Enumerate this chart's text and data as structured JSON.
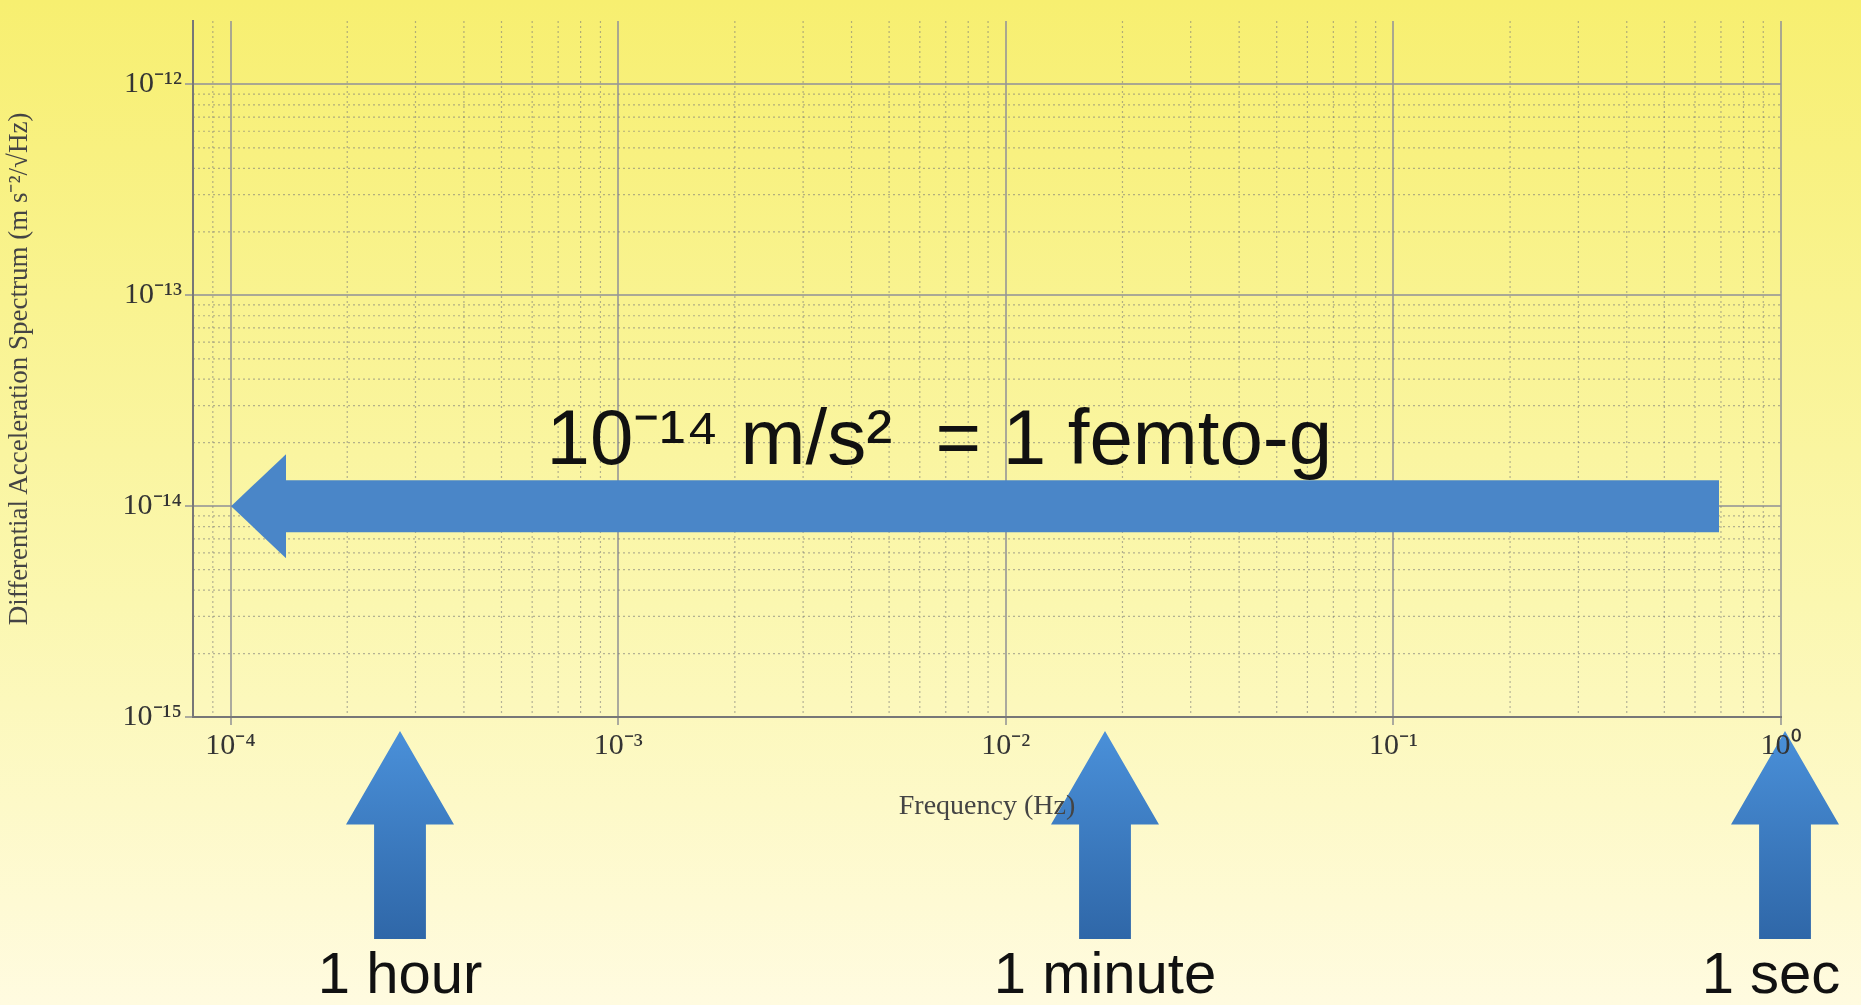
{
  "chart_data": {
    "type": "line",
    "xlabel": "Frequency (Hz)",
    "ylabel": "Differential Acceleration Spectrum (m s⁻²/√Hz)",
    "log": "xy",
    "grid": true,
    "legend": false,
    "xlim": [
      8e-05,
      1
    ],
    "ylim": [
      1e-15,
      2e-12
    ],
    "xticks": [
      {
        "value": 0.0001,
        "label": "10⁻⁴"
      },
      {
        "value": 0.001,
        "label": "10⁻³"
      },
      {
        "value": 0.01,
        "label": "10⁻²"
      },
      {
        "value": 0.1,
        "label": "10⁻¹"
      },
      {
        "value": 1,
        "label": "10⁰"
      }
    ],
    "yticks": [
      {
        "value": 1e-15,
        "label": "10⁻¹⁵"
      },
      {
        "value": 1e-14,
        "label": "10⁻¹⁴"
      },
      {
        "value": 1e-13,
        "label": "10⁻¹³"
      },
      {
        "value": 1e-12,
        "label": "10⁻¹²"
      }
    ],
    "ref_lines": [
      {
        "axis": "y",
        "value": 1e-14,
        "color": "#4a86c8"
      }
    ],
    "annotations": [
      "10⁻¹⁴ m/s²  = 1 femto-g",
      "1 hour",
      "1 minute",
      "1 sec"
    ]
  }
}
